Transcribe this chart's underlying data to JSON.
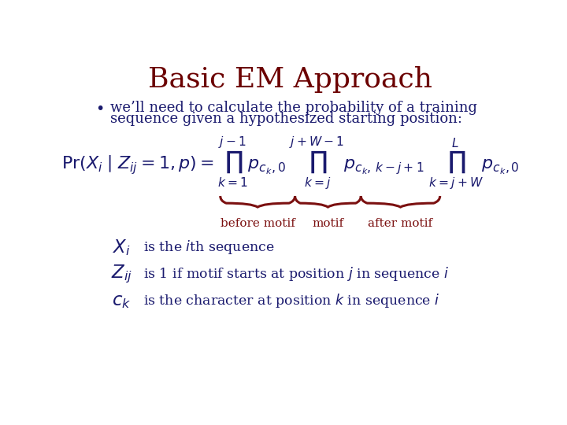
{
  "title": "Basic EM Approach",
  "title_color": "#6B0000",
  "title_fontsize": 26,
  "background_color": "#ffffff",
  "bullet_text_line1": "we’ll need to calculate the probability of a training",
  "bullet_text_line2": "sequence given a hypothesized starting position:",
  "bullet_color": "#1a1a6e",
  "bullet_fontsize": 13,
  "formula_color": "#1a1a6e",
  "formula_fontsize": 16,
  "brace_color": "#7B1010",
  "label_before": "before motif",
  "label_motif": "motif",
  "label_after": "after motif",
  "label_color": "#7B1010",
  "label_fontsize": 11,
  "def_symbol_color": "#1a1a6e",
  "def_text_color": "#1a1a6e",
  "def_fontsize": 12.5
}
